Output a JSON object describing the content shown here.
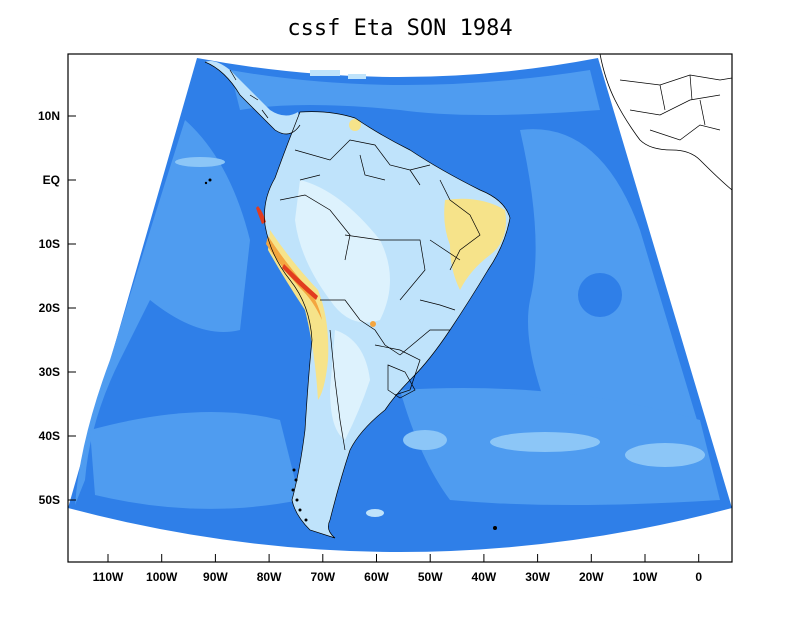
{
  "title": "cssf Eta SON 1984",
  "colors": {
    "ocean_dark": "#2f7fe8",
    "ocean_mid": "#4f9cf0",
    "ocean_light": "#8cc6f7",
    "land_base": "#bfe3fb",
    "land_pale": "#ddf2fd",
    "dry_yellow": "#f6e38a",
    "dry_orange": "#f4a640",
    "dry_red": "#e23c1f",
    "border": "#000000"
  },
  "axes": {
    "y_labels": [
      "10N",
      "EQ",
      "10S",
      "20S",
      "30S",
      "40S",
      "50S"
    ],
    "x_labels": [
      "110W",
      "100W",
      "90W",
      "80W",
      "70W",
      "60W",
      "50W",
      "40W",
      "30W",
      "20W",
      "10W",
      "0"
    ]
  }
}
